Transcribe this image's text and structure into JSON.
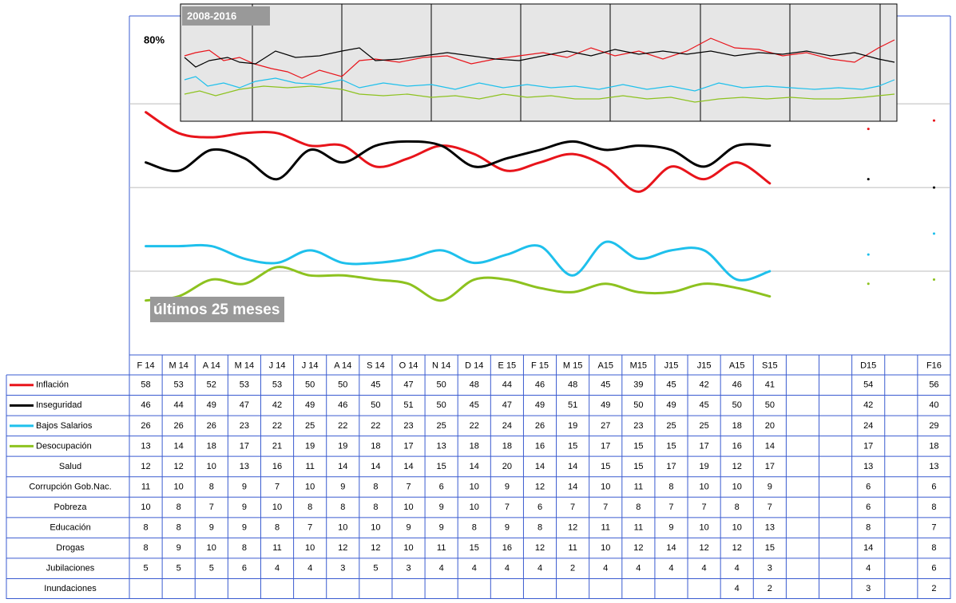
{
  "chart_data": {
    "type": "line",
    "categories": [
      "F 14",
      "M 14",
      "A 14",
      "M 14",
      "J 14",
      "J 14",
      "A 14",
      "S 14",
      "O 14",
      "N 14",
      "D 14",
      "E 15",
      "F 15",
      "M 15",
      "A15",
      "M15",
      "J15",
      "J15",
      "A15",
      "S15",
      null,
      null,
      "D15",
      null,
      "F16"
    ],
    "ylim": [
      0,
      81
    ],
    "yticks": [
      {
        "value": 20,
        "label": null
      },
      {
        "value": 40,
        "label": null
      },
      {
        "value": 60,
        "label": null
      },
      {
        "value": 80,
        "label": "80%"
      }
    ],
    "grid": true,
    "inset_label": "2008-2016",
    "annotation": "últimos 25 meses",
    "series": [
      {
        "name": "Inflación",
        "color": "#e8141b",
        "values": [
          58,
          53,
          52,
          53,
          53,
          50,
          50,
          45,
          47,
          50,
          48,
          44,
          46,
          48,
          45,
          39,
          45,
          42,
          46,
          41,
          null,
          null,
          54,
          null,
          56
        ]
      },
      {
        "name": "Inseguridad",
        "color": "#000000",
        "values": [
          46,
          44,
          49,
          47,
          42,
          49,
          46,
          50,
          51,
          50,
          45,
          47,
          49,
          51,
          49,
          50,
          49,
          45,
          50,
          50,
          null,
          null,
          42,
          null,
          40
        ]
      },
      {
        "name": "Bajos Salarios",
        "color": "#1ec0ec",
        "values": [
          26,
          26,
          26,
          23,
          22,
          25,
          22,
          22,
          23,
          25,
          22,
          24,
          26,
          19,
          27,
          23,
          25,
          25,
          18,
          20,
          null,
          null,
          24,
          null,
          29
        ]
      },
      {
        "name": "Desocupación",
        "color": "#8dc21f",
        "values": [
          13,
          14,
          18,
          17,
          21,
          19,
          19,
          18,
          17,
          13,
          18,
          18,
          16,
          15,
          17,
          15,
          15,
          17,
          16,
          14,
          null,
          null,
          17,
          null,
          18
        ]
      },
      {
        "name": "Salud",
        "values": [
          12,
          12,
          10,
          13,
          16,
          11,
          14,
          14,
          14,
          15,
          14,
          20,
          14,
          14,
          15,
          15,
          17,
          19,
          12,
          17,
          null,
          null,
          13,
          null,
          13
        ]
      },
      {
        "name": "Corrupción Gob.Nac.",
        "values": [
          11,
          10,
          8,
          9,
          7,
          10,
          9,
          8,
          7,
          6,
          10,
          9,
          12,
          14,
          10,
          11,
          8,
          10,
          10,
          9,
          null,
          null,
          6,
          null,
          6
        ]
      },
      {
        "name": "Pobreza",
        "values": [
          10,
          8,
          7,
          9,
          10,
          8,
          8,
          8,
          10,
          9,
          10,
          7,
          6,
          7,
          7,
          8,
          7,
          7,
          8,
          7,
          null,
          null,
          6,
          null,
          8
        ]
      },
      {
        "name": "Educación",
        "values": [
          8,
          8,
          9,
          9,
          8,
          7,
          10,
          10,
          9,
          9,
          8,
          9,
          8,
          12,
          11,
          11,
          9,
          10,
          10,
          13,
          null,
          null,
          8,
          null,
          7
        ]
      },
      {
        "name": "Drogas",
        "values": [
          8,
          9,
          10,
          8,
          11,
          10,
          12,
          12,
          10,
          11,
          15,
          16,
          12,
          11,
          10,
          12,
          14,
          12,
          12,
          15,
          null,
          null,
          14,
          null,
          8
        ]
      },
      {
        "name": "Jubilaciones",
        "values": [
          5,
          5,
          5,
          6,
          4,
          4,
          3,
          5,
          3,
          4,
          4,
          4,
          4,
          2,
          4,
          4,
          4,
          4,
          4,
          3,
          null,
          null,
          4,
          null,
          6
        ]
      },
      {
        "name": "Inundaciones",
        "values": [
          null,
          null,
          null,
          null,
          null,
          null,
          null,
          null,
          null,
          null,
          null,
          null,
          null,
          null,
          null,
          null,
          null,
          null,
          4,
          2,
          null,
          null,
          3,
          null,
          2
        ]
      }
    ]
  }
}
